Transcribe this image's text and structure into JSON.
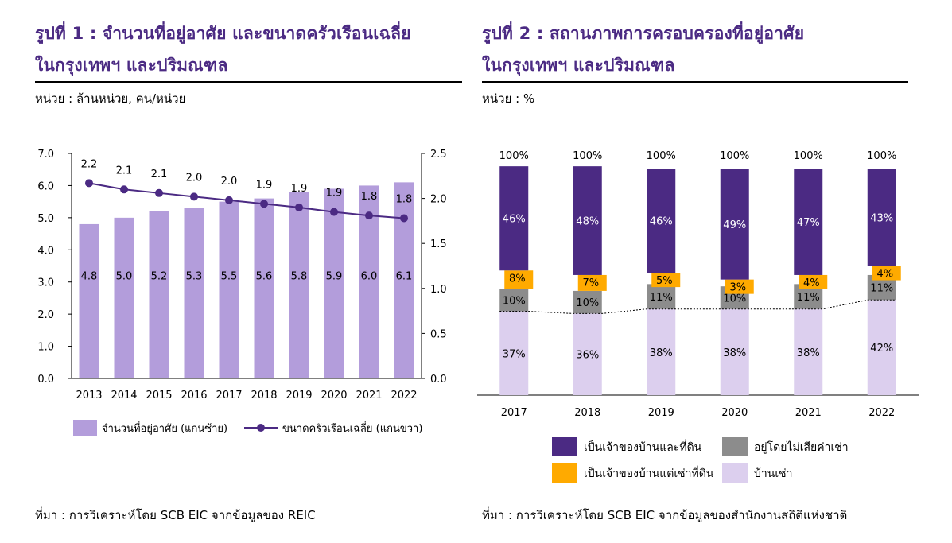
{
  "panel1": {
    "title_line1": "รูปที่ 1 : จำนวนที่อยู่อาศัย และขนาดครัวเรือนเฉลี่ย",
    "title_line2": "ในกรุงเทพฯ และปริมณฑล",
    "unit": "หน่วย : ล้านหน่วย, คน/หน่วย",
    "source": "ที่มา : การวิเคราะห์โดย SCB EIC จากข้อมูลของ REIC"
  },
  "panel2": {
    "title_line1": "รูปที่ 2 : สถานภาพการครอบครองที่อยู่อาศัย",
    "title_line2": "ในกรุงเทพฯ และปริมณฑล",
    "unit": "หน่วย : %",
    "source": "ที่มา : การวิเคราะห์โดย SCB EIC จากข้อมูลของสำนักงานสถิติแห่งชาติ"
  },
  "colors": {
    "title": "#4b2a83",
    "bar1": "#b39ddb",
    "line1": "#4b2a83",
    "owner_land": "#4b2a83",
    "owner_rent_land": "#ffaa00",
    "rent_free": "#8c8c8c",
    "renter": "#dccfee"
  },
  "chart_data": [
    {
      "type": "bar",
      "categories": [
        "2013",
        "2014",
        "2015",
        "2016",
        "2017",
        "2018",
        "2019",
        "2020",
        "2021",
        "2022"
      ],
      "series": [
        {
          "name": "จำนวนที่อยู่อาศัย (แกนซ้าย)",
          "type": "bar",
          "axis": "left",
          "values": [
            4.8,
            5.0,
            5.2,
            5.3,
            5.5,
            5.6,
            5.8,
            5.9,
            6.0,
            6.1
          ],
          "labels": [
            "4.8",
            "5.0",
            "5.2",
            "5.3",
            "5.5",
            "5.6",
            "5.8",
            "5.9",
            "6.0",
            "6.1"
          ]
        },
        {
          "name": "ขนาดครัวเรือนเฉลี่ย (แกนขวา)",
          "type": "line",
          "axis": "right",
          "values": [
            2.17,
            2.1,
            2.06,
            2.02,
            1.98,
            1.94,
            1.9,
            1.85,
            1.81,
            1.78
          ],
          "labels": [
            "2.2",
            "2.1",
            "2.1",
            "2.0",
            "2.0",
            "1.9",
            "1.9",
            "1.9",
            "1.8",
            "1.8"
          ]
        }
      ],
      "ylim_left": [
        0,
        7
      ],
      "yticks_left": [
        "0.0",
        "1.0",
        "2.0",
        "3.0",
        "4.0",
        "5.0",
        "6.0",
        "7.0"
      ],
      "ylim_right": [
        0,
        2.5
      ],
      "yticks_right": [
        "0.0",
        "0.5",
        "1.0",
        "1.5",
        "2.0",
        "2.5"
      ],
      "legend_position": "bottom"
    },
    {
      "type": "bar",
      "stacked": true,
      "categories": [
        "2017",
        "2018",
        "2019",
        "2020",
        "2021",
        "2022"
      ],
      "series": [
        {
          "name": "บ้านเช่า",
          "values": [
            37,
            36,
            38,
            38,
            38,
            42
          ],
          "labels": [
            "37%",
            "36%",
            "38%",
            "38%",
            "38%",
            "42%"
          ]
        },
        {
          "name": "อยู่โดยไม่เสียค่าเช่า",
          "values": [
            10,
            10,
            11,
            10,
            11,
            11
          ],
          "labels": [
            "10%",
            "10%",
            "11%",
            "10%",
            "11%",
            "11%"
          ]
        },
        {
          "name": "เป็นเจ้าของบ้านแต่เช่าที่ดิน",
          "values": [
            8,
            7,
            5,
            3,
            4,
            4
          ],
          "labels": [
            "8%",
            "7%",
            "5%",
            "3%",
            "4%",
            "4%"
          ]
        },
        {
          "name": "เป็นเจ้าของบ้านและที่ดิน",
          "values": [
            46,
            48,
            46,
            49,
            47,
            43
          ],
          "labels": [
            "46%",
            "48%",
            "46%",
            "49%",
            "47%",
            "43%"
          ]
        }
      ],
      "totals": [
        "100%",
        "100%",
        "100%",
        "100%",
        "100%",
        "100%"
      ],
      "legend": [
        "เป็นเจ้าของบ้านและที่ดิน",
        "อยู่โดยไม่เสียค่าเช่า",
        "เป็นเจ้าของบ้านแต่เช่าที่ดิน",
        "บ้านเช่า"
      ],
      "legend_position": "bottom",
      "ylim": [
        0,
        100
      ]
    }
  ]
}
